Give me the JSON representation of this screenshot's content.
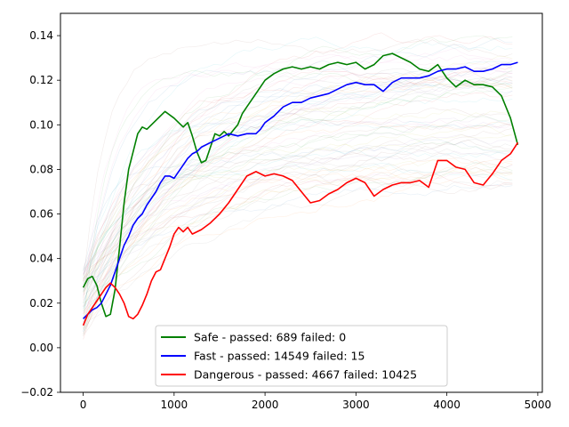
{
  "chart_data": {
    "type": "line",
    "title": "",
    "xlabel": "",
    "ylabel": "",
    "xlim": [
      -250,
      5050
    ],
    "ylim": [
      -0.02,
      0.15
    ],
    "x_ticks": [
      0,
      1000,
      2000,
      3000,
      4000,
      5000
    ],
    "x_tick_labels": [
      "0",
      "1000",
      "2000",
      "3000",
      "4000",
      "5000"
    ],
    "y_ticks": [
      -0.02,
      0.0,
      0.02,
      0.04,
      0.06,
      0.08,
      0.1,
      0.12,
      0.14
    ],
    "y_tick_labels": [
      "−0.02",
      "0.00",
      "0.02",
      "0.04",
      "0.06",
      "0.08",
      "0.10",
      "0.12",
      "0.14"
    ],
    "grid": false,
    "legend_position": "lower-center",
    "background_traces": "faint multicolored thin lines behind the series, spanning roughly 0.00 to 0.14",
    "series": [
      {
        "name": "Safe - passed: 689 failed: 0",
        "color": "#008000",
        "points": [
          [
            0,
            0.027
          ],
          [
            50,
            0.031
          ],
          [
            100,
            0.032
          ],
          [
            150,
            0.028
          ],
          [
            200,
            0.02
          ],
          [
            250,
            0.014
          ],
          [
            300,
            0.015
          ],
          [
            350,
            0.026
          ],
          [
            400,
            0.045
          ],
          [
            450,
            0.065
          ],
          [
            500,
            0.08
          ],
          [
            550,
            0.088
          ],
          [
            600,
            0.096
          ],
          [
            650,
            0.099
          ],
          [
            700,
            0.098
          ],
          [
            800,
            0.102
          ],
          [
            900,
            0.106
          ],
          [
            1000,
            0.103
          ],
          [
            1050,
            0.101
          ],
          [
            1100,
            0.099
          ],
          [
            1150,
            0.101
          ],
          [
            1200,
            0.095
          ],
          [
            1250,
            0.088
          ],
          [
            1300,
            0.083
          ],
          [
            1350,
            0.084
          ],
          [
            1400,
            0.09
          ],
          [
            1450,
            0.096
          ],
          [
            1500,
            0.095
          ],
          [
            1550,
            0.097
          ],
          [
            1600,
            0.095
          ],
          [
            1700,
            0.1
          ],
          [
            1750,
            0.105
          ],
          [
            1800,
            0.108
          ],
          [
            1900,
            0.114
          ],
          [
            2000,
            0.12
          ],
          [
            2100,
            0.123
          ],
          [
            2200,
            0.125
          ],
          [
            2300,
            0.126
          ],
          [
            2400,
            0.125
          ],
          [
            2500,
            0.126
          ],
          [
            2600,
            0.125
          ],
          [
            2700,
            0.127
          ],
          [
            2800,
            0.128
          ],
          [
            2900,
            0.127
          ],
          [
            3000,
            0.128
          ],
          [
            3100,
            0.125
          ],
          [
            3200,
            0.127
          ],
          [
            3300,
            0.131
          ],
          [
            3400,
            0.132
          ],
          [
            3500,
            0.13
          ],
          [
            3600,
            0.128
          ],
          [
            3700,
            0.125
          ],
          [
            3800,
            0.124
          ],
          [
            3900,
            0.127
          ],
          [
            4000,
            0.121
          ],
          [
            4100,
            0.117
          ],
          [
            4200,
            0.12
          ],
          [
            4300,
            0.118
          ],
          [
            4400,
            0.118
          ],
          [
            4500,
            0.117
          ],
          [
            4600,
            0.113
          ],
          [
            4700,
            0.103
          ],
          [
            4780,
            0.091
          ]
        ]
      },
      {
        "name": "Fast - passed: 14549 failed: 15",
        "color": "#0000ff",
        "points": [
          [
            0,
            0.013
          ],
          [
            50,
            0.015
          ],
          [
            100,
            0.017
          ],
          [
            150,
            0.018
          ],
          [
            200,
            0.02
          ],
          [
            300,
            0.028
          ],
          [
            350,
            0.034
          ],
          [
            400,
            0.04
          ],
          [
            450,
            0.046
          ],
          [
            500,
            0.05
          ],
          [
            550,
            0.055
          ],
          [
            600,
            0.058
          ],
          [
            650,
            0.06
          ],
          [
            700,
            0.064
          ],
          [
            750,
            0.067
          ],
          [
            800,
            0.07
          ],
          [
            850,
            0.074
          ],
          [
            900,
            0.077
          ],
          [
            950,
            0.077
          ],
          [
            1000,
            0.076
          ],
          [
            1050,
            0.079
          ],
          [
            1100,
            0.082
          ],
          [
            1150,
            0.085
          ],
          [
            1200,
            0.087
          ],
          [
            1250,
            0.088
          ],
          [
            1300,
            0.09
          ],
          [
            1400,
            0.092
          ],
          [
            1500,
            0.094
          ],
          [
            1600,
            0.096
          ],
          [
            1700,
            0.095
          ],
          [
            1800,
            0.096
          ],
          [
            1900,
            0.096
          ],
          [
            1950,
            0.098
          ],
          [
            2000,
            0.101
          ],
          [
            2100,
            0.104
          ],
          [
            2200,
            0.108
          ],
          [
            2300,
            0.11
          ],
          [
            2400,
            0.11
          ],
          [
            2500,
            0.112
          ],
          [
            2600,
            0.113
          ],
          [
            2700,
            0.114
          ],
          [
            2800,
            0.116
          ],
          [
            2900,
            0.118
          ],
          [
            3000,
            0.119
          ],
          [
            3100,
            0.118
          ],
          [
            3200,
            0.118
          ],
          [
            3300,
            0.115
          ],
          [
            3400,
            0.119
          ],
          [
            3500,
            0.121
          ],
          [
            3600,
            0.121
          ],
          [
            3700,
            0.121
          ],
          [
            3800,
            0.122
          ],
          [
            3900,
            0.124
          ],
          [
            4000,
            0.125
          ],
          [
            4100,
            0.125
          ],
          [
            4200,
            0.126
          ],
          [
            4300,
            0.124
          ],
          [
            4400,
            0.124
          ],
          [
            4500,
            0.125
          ],
          [
            4600,
            0.127
          ],
          [
            4700,
            0.127
          ],
          [
            4780,
            0.128
          ]
        ]
      },
      {
        "name": "Dangerous - passed: 4667 failed: 10425",
        "color": "#ff0000",
        "points": [
          [
            0,
            0.01
          ],
          [
            50,
            0.015
          ],
          [
            100,
            0.018
          ],
          [
            150,
            0.021
          ],
          [
            200,
            0.024
          ],
          [
            250,
            0.027
          ],
          [
            300,
            0.029
          ],
          [
            350,
            0.027
          ],
          [
            400,
            0.024
          ],
          [
            450,
            0.02
          ],
          [
            500,
            0.014
          ],
          [
            550,
            0.013
          ],
          [
            600,
            0.015
          ],
          [
            650,
            0.019
          ],
          [
            700,
            0.024
          ],
          [
            750,
            0.03
          ],
          [
            800,
            0.034
          ],
          [
            850,
            0.035
          ],
          [
            900,
            0.04
          ],
          [
            950,
            0.045
          ],
          [
            1000,
            0.051
          ],
          [
            1050,
            0.054
          ],
          [
            1100,
            0.052
          ],
          [
            1150,
            0.054
          ],
          [
            1200,
            0.051
          ],
          [
            1300,
            0.053
          ],
          [
            1400,
            0.056
          ],
          [
            1500,
            0.06
          ],
          [
            1600,
            0.065
          ],
          [
            1700,
            0.071
          ],
          [
            1800,
            0.077
          ],
          [
            1900,
            0.079
          ],
          [
            2000,
            0.077
          ],
          [
            2100,
            0.078
          ],
          [
            2200,
            0.077
          ],
          [
            2300,
            0.075
          ],
          [
            2400,
            0.07
          ],
          [
            2500,
            0.065
          ],
          [
            2600,
            0.066
          ],
          [
            2700,
            0.069
          ],
          [
            2800,
            0.071
          ],
          [
            2900,
            0.074
          ],
          [
            3000,
            0.076
          ],
          [
            3100,
            0.074
          ],
          [
            3200,
            0.068
          ],
          [
            3300,
            0.071
          ],
          [
            3400,
            0.073
          ],
          [
            3500,
            0.074
          ],
          [
            3600,
            0.074
          ],
          [
            3700,
            0.075
          ],
          [
            3800,
            0.072
          ],
          [
            3900,
            0.084
          ],
          [
            4000,
            0.084
          ],
          [
            4100,
            0.081
          ],
          [
            4200,
            0.08
          ],
          [
            4300,
            0.074
          ],
          [
            4400,
            0.073
          ],
          [
            4500,
            0.078
          ],
          [
            4600,
            0.084
          ],
          [
            4700,
            0.087
          ],
          [
            4780,
            0.092
          ]
        ]
      }
    ]
  }
}
